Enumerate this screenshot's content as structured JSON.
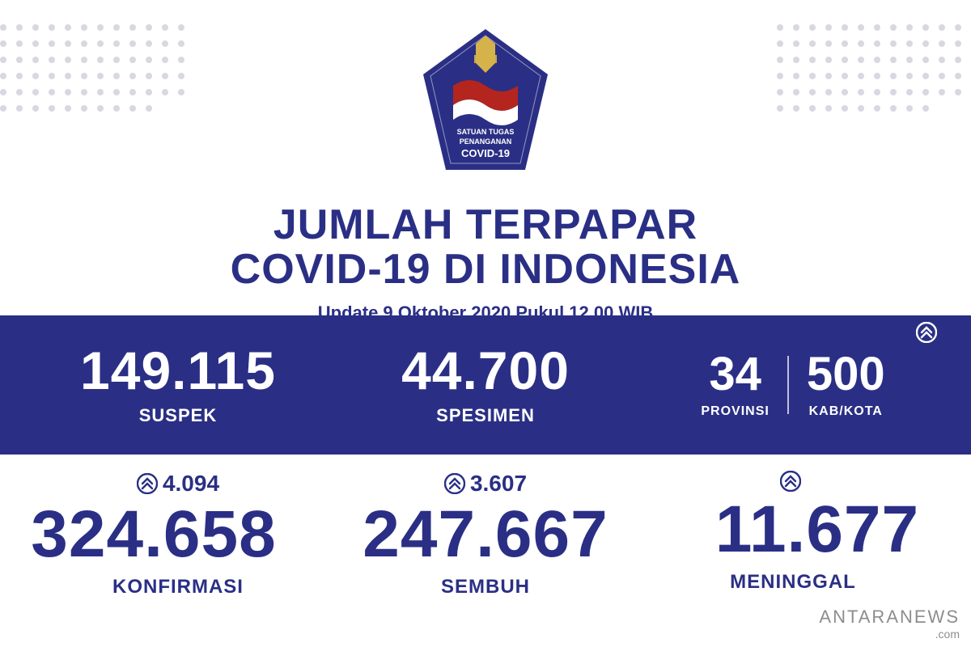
{
  "emblem": {
    "line1": "SATUAN TUGAS",
    "line2": "PENANGANAN",
    "line3": "COVID-19",
    "bg_color": "#2a2f85",
    "accent_color": "#b3251e",
    "gold": "#d6b24a"
  },
  "title": {
    "line1": "JUMLAH TERPAPAR",
    "line2": "COVID-19 DI INDONESIA"
  },
  "subtitle": "Update 9 Oktober 2020 Pukul 12.00 WIB",
  "row1": {
    "suspek": {
      "value": "149.115",
      "label": "SUSPEK"
    },
    "spesimen": {
      "value": "44.700",
      "label": "SPESIMEN"
    },
    "provinsi": {
      "value": "34",
      "label": "PROVINSI"
    },
    "kabkota": {
      "value": "500",
      "label": "KAB/KOTA",
      "has_up": true
    }
  },
  "row2": {
    "konfirmasi": {
      "value": "324.658",
      "label": "KONFIRMASI",
      "increase": "4.094"
    },
    "sembuh": {
      "value": "247.667",
      "label": "SEMBUH",
      "increase": "3.607"
    },
    "meninggal": {
      "value": "11.677",
      "label": "MENINGGAL",
      "increase": ""
    }
  },
  "watermark": {
    "brand": "ANTARANEWS",
    "domain": ".com"
  },
  "colors": {
    "primary": "#2a2f85",
    "white": "#ffffff"
  }
}
